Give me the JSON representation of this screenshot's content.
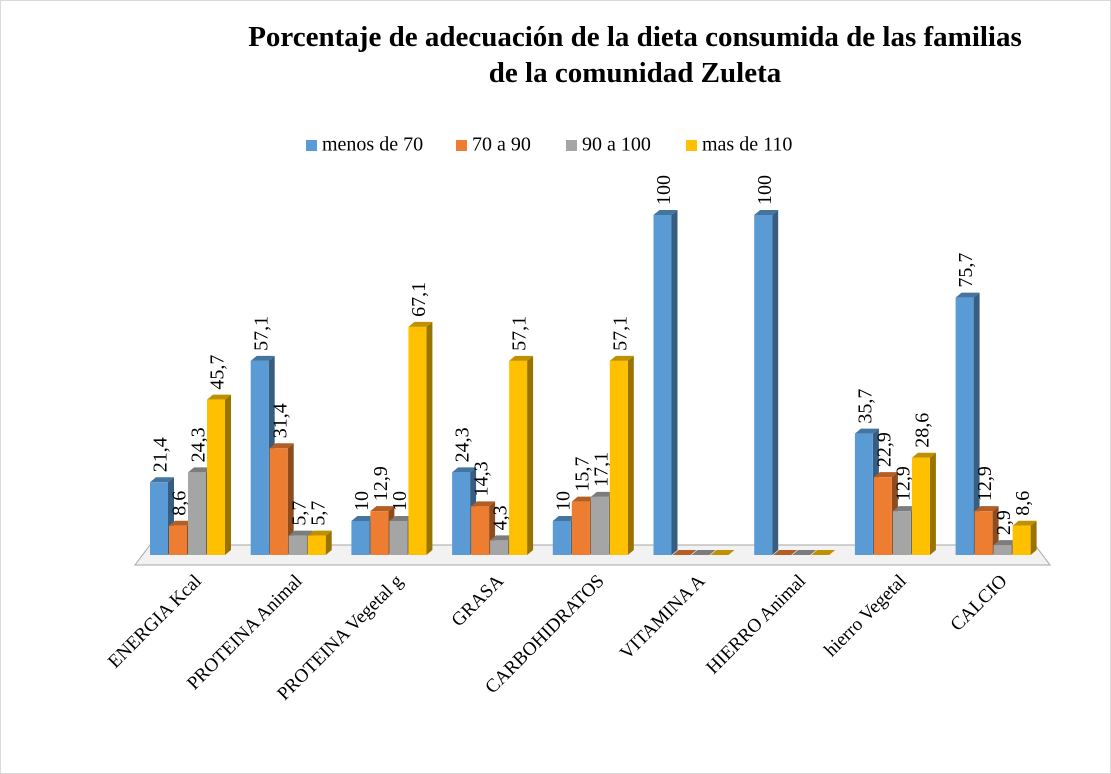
{
  "chart_data": {
    "type": "bar3d",
    "title": [
      "Porcentaje de adecuación de la dieta consumida de las familias",
      "de la comunidad Zuleta"
    ],
    "categories": [
      "ENERGIA  Kcal",
      "PROTEINA Animal",
      "PROTEINA Vegetal g",
      "GRASA",
      "CARBOHIDRATOS",
      "VITAMINA A",
      "HIERRO Animal",
      "hierro Vegetal",
      "CALCIO"
    ],
    "legend": "top",
    "series": [
      {
        "name": "menos de 70",
        "color": "#5b9bd5",
        "values": [
          21.4,
          57.1,
          10,
          24.3,
          10,
          100,
          100,
          35.7,
          75.7
        ],
        "value_labels": [
          "21,4",
          "57,1",
          "10",
          "24,3",
          "10",
          "100",
          "100",
          "35,7",
          "75,7"
        ]
      },
      {
        "name": "70 a 90",
        "color": "#ed7d31",
        "values": [
          8.6,
          31.4,
          12.9,
          14.3,
          15.7,
          0,
          0,
          22.9,
          12.9
        ],
        "value_labels": [
          "8,6",
          "31,4",
          "12,9",
          "14,3",
          "15,7",
          null,
          null,
          "22,9",
          "12,9"
        ]
      },
      {
        "name": "90 a 100",
        "color": "#a5a5a5",
        "values": [
          24.3,
          5.7,
          10,
          4.3,
          17.1,
          0,
          0,
          12.9,
          2.9
        ],
        "value_labels": [
          "24,3",
          "5,7",
          "10",
          "4,3",
          "17,1",
          null,
          null,
          "12,9",
          "2,9"
        ]
      },
      {
        "name": "mas de 110",
        "color": "#ffc000",
        "values": [
          45.7,
          5.7,
          67.1,
          57.1,
          57.1,
          0,
          0,
          28.6,
          8.6
        ],
        "value_labels": [
          "45,7",
          "5,7",
          "67,1",
          "57,1",
          "57,1",
          null,
          null,
          "28,6",
          "8,6"
        ]
      }
    ]
  }
}
